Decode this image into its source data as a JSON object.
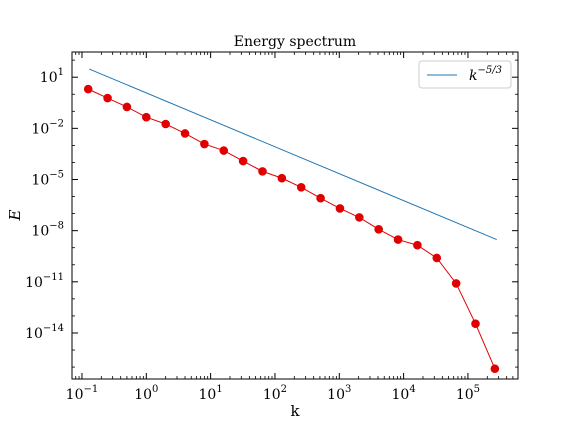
{
  "chart_data": {
    "type": "line",
    "title": "Energy spectrum",
    "xlabel": "k",
    "ylabel": "E",
    "xscale": "log",
    "yscale": "log",
    "xlim": [
      0.07,
      600000
    ],
    "ylim": [
      2e-17,
      300
    ],
    "x_tick_exponents": [
      -1,
      0,
      1,
      2,
      3,
      4,
      5
    ],
    "y_tick_exponents": [
      -14,
      -11,
      -8,
      -5,
      -2,
      1
    ],
    "tick_base": "10",
    "grid": false,
    "legend_position": "top-right",
    "series": [
      {
        "kind": "line",
        "legend_base": "k",
        "legend_exponent": "−5/3",
        "color": "#1f77b4",
        "x": [
          0.13,
          280000
        ],
        "y": [
          30,
          3e-09
        ]
      },
      {
        "kind": "line-markers",
        "color": "#e00000",
        "x": [
          0.125,
          0.25,
          0.5,
          1,
          2,
          4,
          8,
          16,
          32,
          64,
          128,
          256,
          512,
          1024,
          2048,
          4096,
          8192,
          16384,
          32768,
          65536,
          131072,
          262144
        ],
        "y": [
          2,
          0.6,
          0.18,
          0.045,
          0.018,
          0.005,
          0.0012,
          0.0005,
          0.00012,
          3e-05,
          1.2e-05,
          3.5e-06,
          8e-07,
          2e-07,
          6e-08,
          1.2e-08,
          3e-09,
          1.4e-09,
          2.5e-10,
          8e-12,
          3.5e-14,
          8e-17
        ]
      }
    ]
  }
}
